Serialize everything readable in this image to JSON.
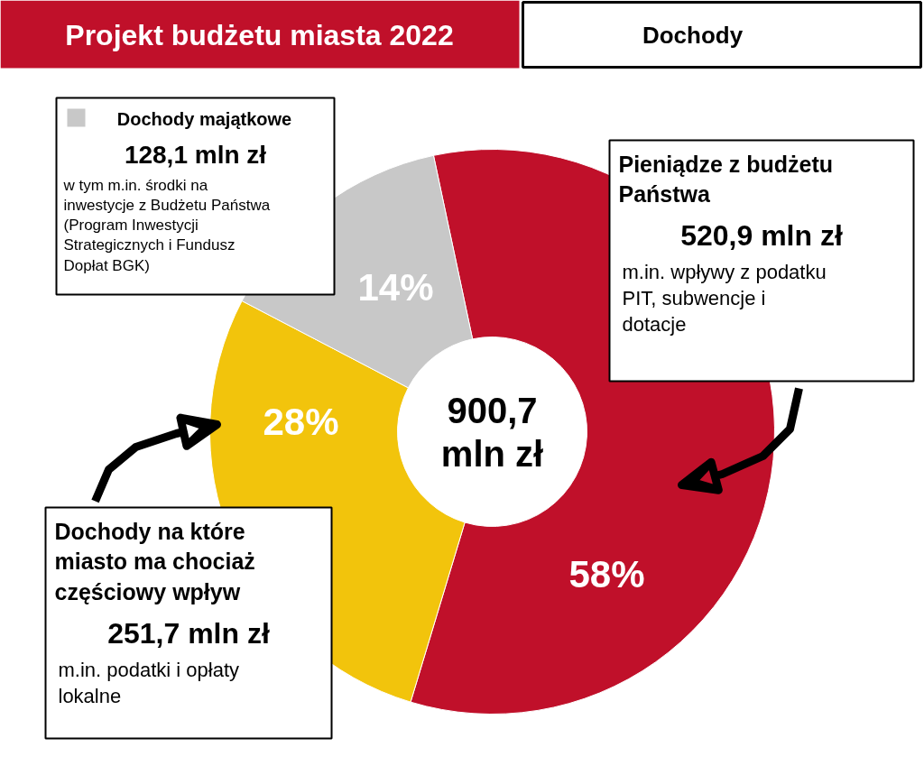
{
  "chart_data": {
    "type": "donut",
    "title": "Projekt budżetu miasta 2022",
    "subtitle": "Dochody",
    "categories": [
      "Pieniądze z budżetu Państwa",
      "Dochody na które miasto ma chociaż częściowy wpływ",
      "Dochody majątkowe"
    ],
    "values": [
      58,
      28,
      14
    ],
    "colors": [
      "#c0102a",
      "#f2c40c",
      "#c8c8c8"
    ],
    "value_labels": [
      "58%",
      "28%",
      "14%"
    ],
    "annotations": [
      "900,7 mln zł",
      "520,9 mln zł",
      "m.in. wpływy z podatku PIT, subwencje i dotacje",
      "251,7 mln zł",
      "m.in. podatki i opłaty lokalne",
      "128,1 mln zł",
      "w tym m.in. środki na inwestycje z Budżetu Państwa (Program Inwestycji Strategicznych i Fundusz Dopłat BGK)"
    ]
  }
}
